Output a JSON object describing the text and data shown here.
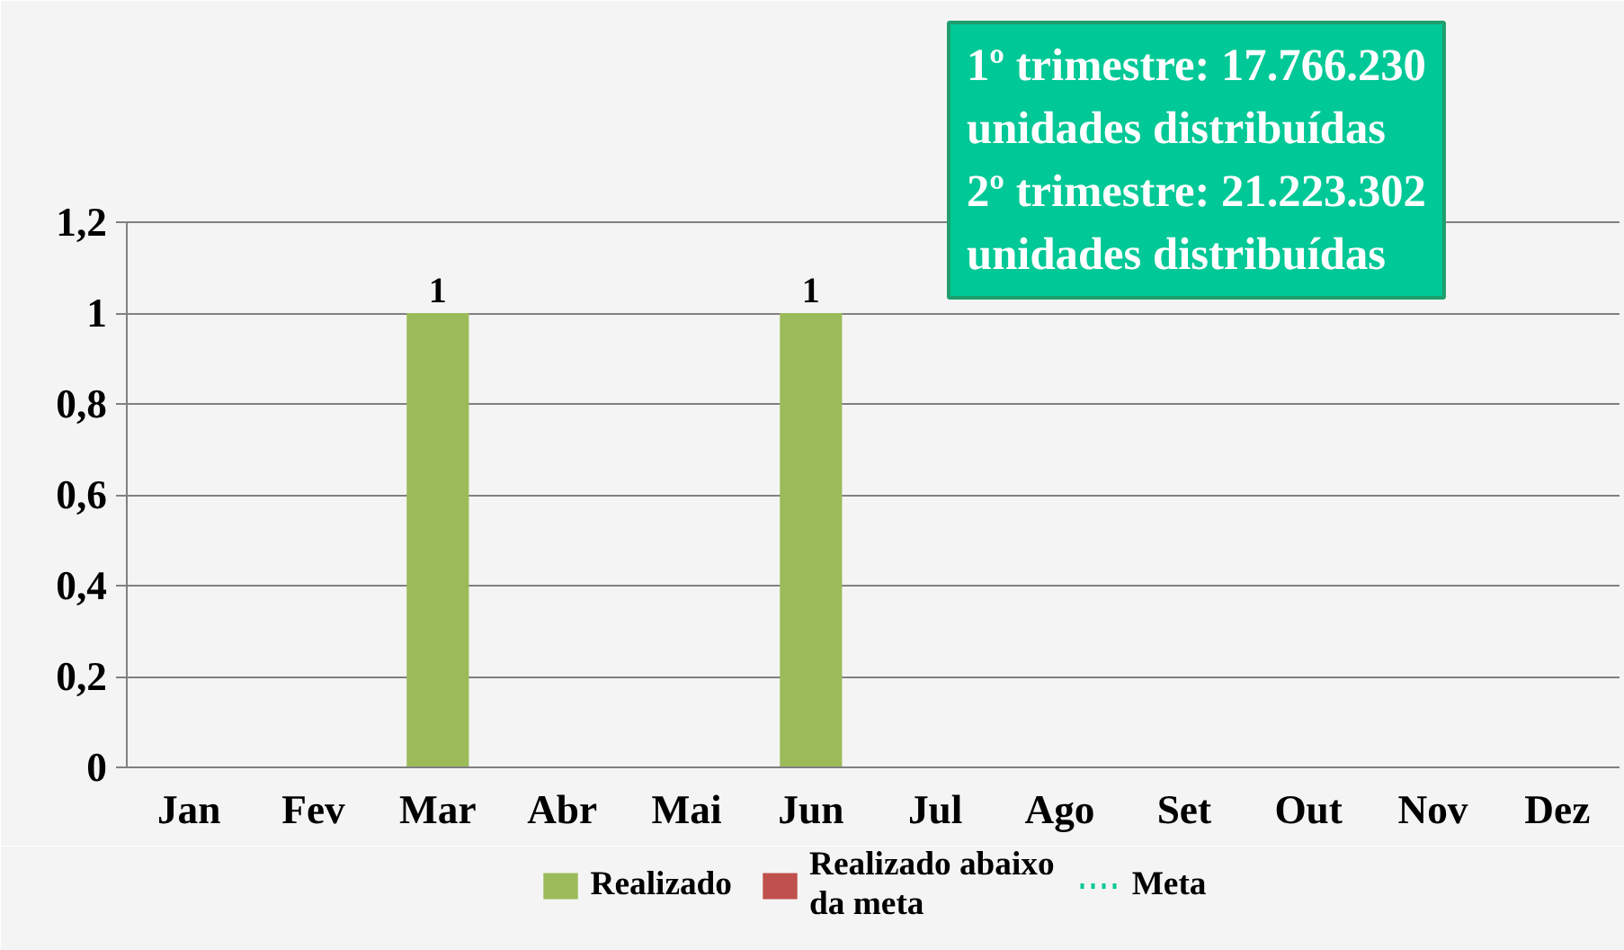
{
  "chart_data": {
    "type": "bar",
    "categories": [
      "Jan",
      "Fev",
      "Mar",
      "Abr",
      "Mai",
      "Jun",
      "Jul",
      "Ago",
      "Set",
      "Out",
      "Nov",
      "Dez"
    ],
    "series": [
      {
        "name": "Realizado",
        "color": "#9bbb59",
        "values": [
          null,
          null,
          1,
          null,
          null,
          1,
          null,
          null,
          null,
          null,
          null,
          null
        ]
      },
      {
        "name": "Realizado abaixo da meta",
        "color": "#c0504d",
        "values": [
          null,
          null,
          null,
          null,
          null,
          null,
          null,
          null,
          null,
          null,
          null,
          null
        ]
      },
      {
        "name": "Meta",
        "type": "line",
        "line_style": "dotted",
        "color": "#00c896",
        "values": [
          null,
          null,
          null,
          null,
          null,
          null,
          null,
          null,
          null,
          null,
          null,
          null
        ]
      }
    ],
    "ylim": [
      0,
      1.2
    ],
    "yticks": [
      0,
      {
        "value": 0.2,
        "label": "0,2"
      },
      {
        "value": 0.4,
        "label": "0,4"
      },
      {
        "value": 0.6,
        "label": "0,6"
      },
      {
        "value": 0.8,
        "label": "0,8"
      },
      1,
      {
        "value": 1.2,
        "label": "1,2"
      }
    ],
    "grid": "y",
    "data_labels": true,
    "legend": "bottom",
    "annotations": [
      "1º trimestre: 17.766.230 unidades distribuídas\n2º trimestre: 21.223.302 unidades distribuídas"
    ]
  }
}
